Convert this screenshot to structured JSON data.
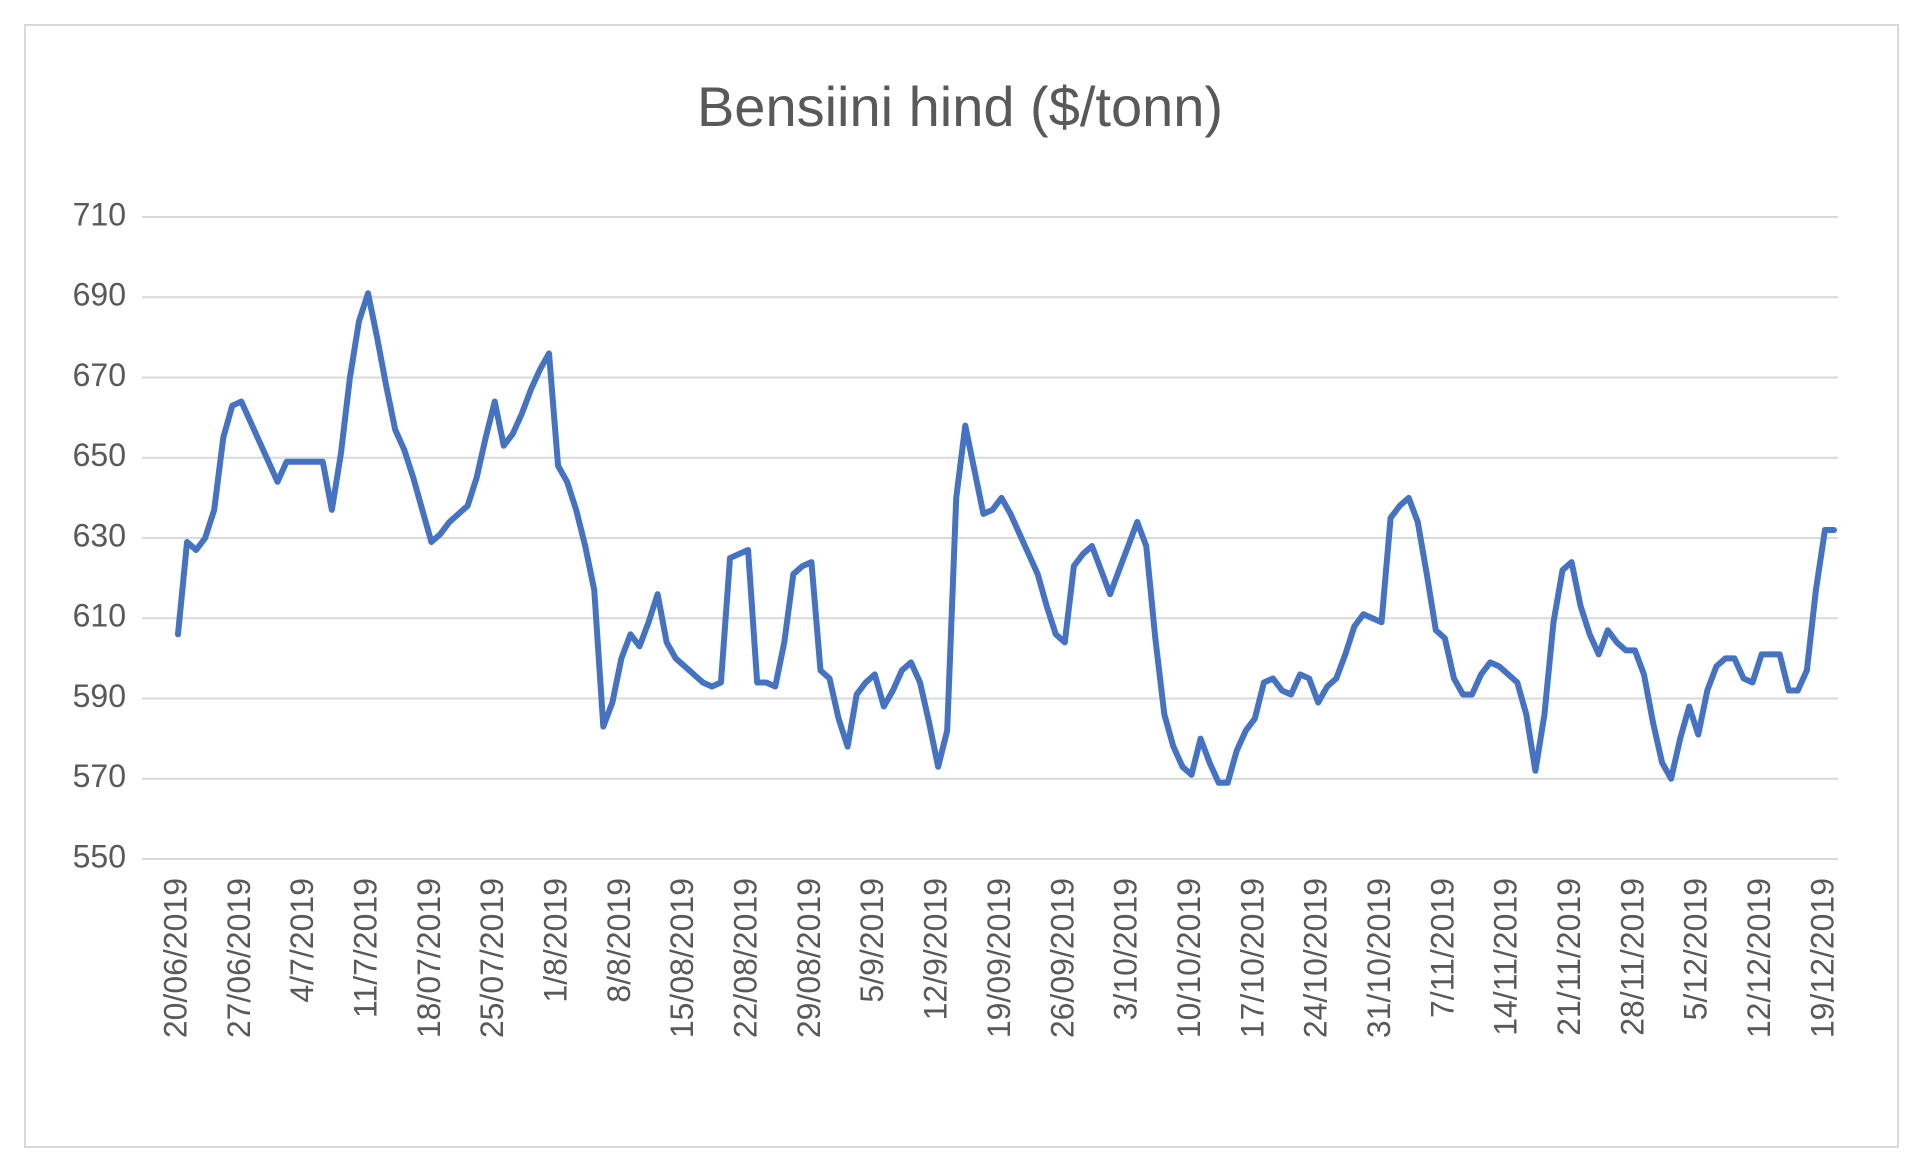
{
  "chart_data": {
    "type": "line",
    "title": "Bensiini hind ($/tonn)",
    "categories": [
      "20/06/2019",
      null,
      null,
      null,
      null,
      null,
      null,
      "27/06/2019",
      null,
      null,
      null,
      null,
      null,
      null,
      "4/7/2019",
      null,
      null,
      null,
      null,
      null,
      null,
      "11/7/2019",
      null,
      null,
      null,
      null,
      null,
      null,
      "18/07/2019",
      null,
      null,
      null,
      null,
      null,
      null,
      "25/07/2019",
      null,
      null,
      null,
      null,
      null,
      null,
      "1/8/2019",
      null,
      null,
      null,
      null,
      null,
      null,
      "8/8/2019",
      null,
      null,
      null,
      null,
      null,
      null,
      "15/08/2019",
      null,
      null,
      null,
      null,
      null,
      null,
      "22/08/2019",
      null,
      null,
      null,
      null,
      null,
      null,
      "29/08/2019",
      null,
      null,
      null,
      null,
      null,
      null,
      "5/9/2019",
      null,
      null,
      null,
      null,
      null,
      null,
      "12/9/2019",
      null,
      null,
      null,
      null,
      null,
      null,
      "19/09/2019",
      null,
      null,
      null,
      null,
      null,
      null,
      "26/09/2019",
      null,
      null,
      null,
      null,
      null,
      null,
      "3/10/2019",
      null,
      null,
      null,
      null,
      null,
      null,
      "10/10/2019",
      null,
      null,
      null,
      null,
      null,
      null,
      "17/10/2019",
      null,
      null,
      null,
      null,
      null,
      null,
      "24/10/2019",
      null,
      null,
      null,
      null,
      null,
      null,
      "31/10/2019",
      null,
      null,
      null,
      null,
      null,
      null,
      "7/11/2019",
      null,
      null,
      null,
      null,
      null,
      null,
      "14/11/2019",
      null,
      null,
      null,
      null,
      null,
      null,
      "21/11/2019",
      null,
      null,
      null,
      null,
      null,
      null,
      "28/11/2019",
      null,
      null,
      null,
      null,
      null,
      null,
      "5/12/2019",
      null,
      null,
      null,
      null,
      null,
      null,
      "12/12/2019",
      null,
      null,
      null,
      null,
      null,
      null,
      "19/12/2019",
      null
    ],
    "color": "#4472c4",
    "values": [
      606,
      629,
      627,
      630,
      637,
      655,
      663,
      664,
      659,
      654,
      649,
      644,
      649,
      649,
      649,
      649,
      649,
      637,
      651,
      670,
      684,
      691,
      680,
      668,
      657,
      652,
      645,
      637,
      629,
      631,
      634,
      636,
      638,
      645,
      655,
      664,
      653,
      656,
      661,
      667,
      672,
      676,
      648,
      644,
      637,
      628,
      617,
      583,
      589,
      600,
      606,
      603,
      609,
      616,
      604,
      600,
      598,
      596,
      594,
      593,
      594,
      625,
      626,
      627,
      594,
      594,
      593,
      604,
      621,
      623,
      624,
      597,
      595,
      585,
      578,
      591,
      594,
      596,
      588,
      592,
      597,
      599,
      594,
      584,
      573,
      582,
      640,
      658,
      647,
      636,
      637,
      640,
      636,
      631,
      626,
      621,
      613,
      606,
      604,
      623,
      626,
      628,
      622,
      616,
      622,
      628,
      634,
      628,
      605,
      586,
      578,
      573,
      571,
      580,
      574,
      569,
      569,
      577,
      582,
      585,
      594,
      595,
      592,
      591,
      596,
      595,
      589,
      593,
      595,
      601,
      608,
      611,
      610,
      609,
      635,
      638,
      640,
      634,
      621,
      607,
      605,
      595,
      591,
      591,
      596,
      599,
      598,
      596,
      594,
      586,
      572,
      586,
      609,
      622,
      624,
      613,
      606,
      601,
      607,
      604,
      602,
      602,
      596,
      584,
      574,
      570,
      580,
      588,
      581,
      592,
      598,
      600,
      600,
      595,
      594,
      601,
      601,
      601,
      592,
      592,
      597,
      617,
      632,
      632
    ],
    "ylim": [
      550,
      710
    ],
    "yticks": [
      550,
      570,
      590,
      610,
      630,
      650,
      670,
      690,
      710
    ],
    "grid": true
  }
}
